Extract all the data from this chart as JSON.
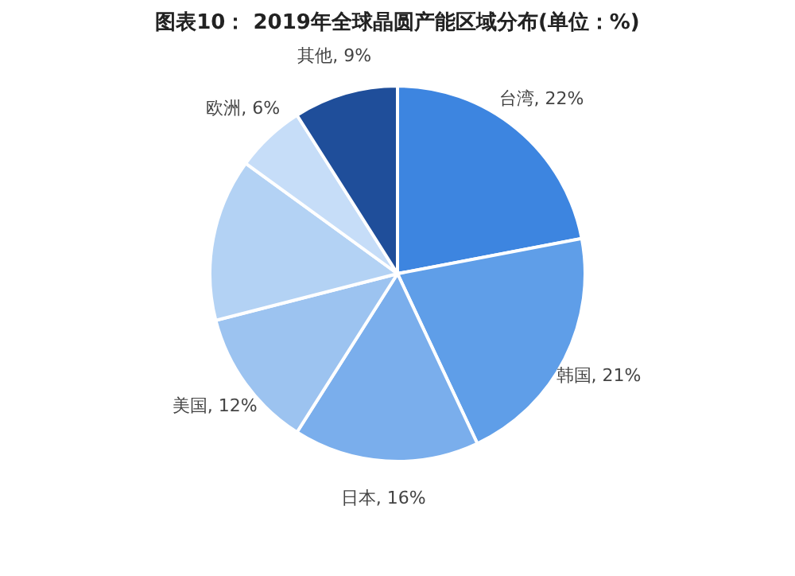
{
  "chart_data": {
    "type": "pie",
    "title": "图表10： 2019年全球晶圆产能区域分布(单位：%)",
    "categories": [
      "台湾",
      "韩国",
      "日本",
      "美国",
      null,
      "欧洲",
      "其他"
    ],
    "values": [
      22,
      21,
      16,
      12,
      14,
      6,
      9
    ],
    "colors": [
      "#3d85e0",
      "#5f9ee8",
      "#7aaeec",
      "#9cc3f0",
      "#b3d2f4",
      "#c6ddf8",
      "#1f4e9a"
    ],
    "value_labels": [
      "22%",
      "21%",
      "16%",
      "12%",
      null,
      "6%",
      "9%"
    ],
    "legend": false
  }
}
